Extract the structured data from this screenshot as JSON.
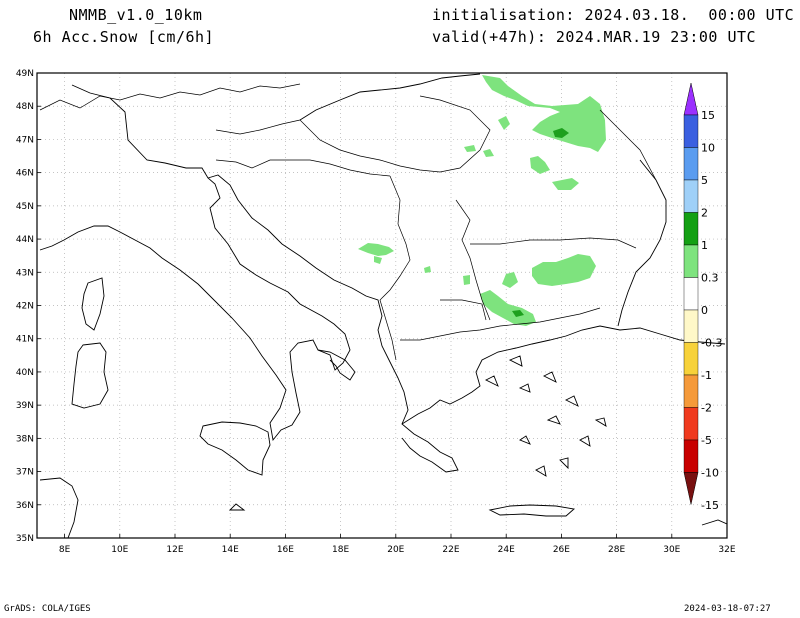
{
  "header": {
    "model": "NMMB_v1.0_10km",
    "field": "6h Acc.Snow [cm/6h]",
    "init": "initialisation: 2024.03.18.  00:00 UTC",
    "valid": "valid(+47h): 2024.MAR.19 23:00 UTC"
  },
  "footer": {
    "credit": "GrADS: COLA/IGES",
    "timestamp": "2024-03-18-07:27"
  },
  "map": {
    "lat_labels": [
      "49N",
      "48N",
      "47N",
      "46N",
      "45N",
      "44N",
      "43N",
      "42N",
      "41N",
      "40N",
      "39N",
      "38N",
      "37N",
      "36N",
      "35N"
    ],
    "lon_labels": [
      "8E",
      "10E",
      "12E",
      "14E",
      "16E",
      "18E",
      "20E",
      "22E",
      "24E",
      "26E",
      "28E",
      "30E",
      "32E"
    ],
    "colors": {
      "land_outline": "#000000",
      "grid": "#b0b0b0",
      "snow_light": "#7ee37e",
      "snow_mid": "#1ea01e"
    }
  },
  "colorbar": {
    "labels": [
      "15",
      "10",
      "5",
      "2",
      "1",
      "0.3",
      "0",
      "-0.3",
      "-1",
      "-2",
      "-5",
      "-10",
      "-15"
    ],
    "colors": [
      "#9b30ff",
      "#3a5fe0",
      "#5a9cf0",
      "#9fd0f8",
      "#14a014",
      "#7ee37e",
      "#ffffff",
      "#fff8c8",
      "#f7d23a",
      "#f59a3a",
      "#f03a1e",
      "#c80000",
      "#781010"
    ]
  }
}
